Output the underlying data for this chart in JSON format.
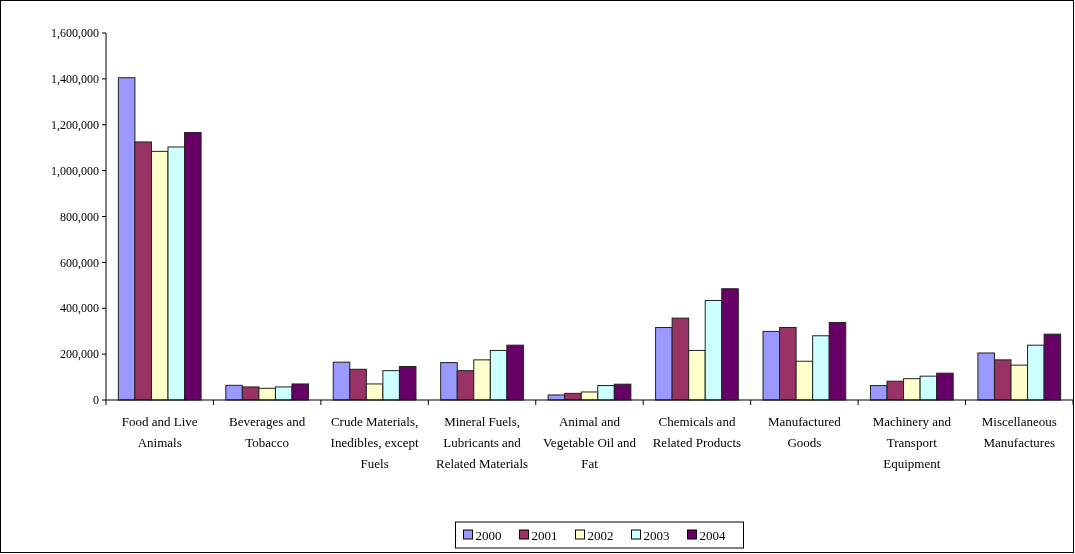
{
  "chart_data": {
    "type": "bar",
    "categories": [
      "Food and Live Animals",
      "Beverages and Tobacco",
      "Crude Materials, Inedibles, except Fuels",
      "Mineral Fuels, Lubricants and Related Materials",
      "Animal and Vegetable Oil and Fat",
      "Chemicals and Related Products",
      "Manufactured Goods",
      "Machinery and Transport Equipment",
      "Miscellaneous Manufactures"
    ],
    "series": [
      {
        "name": "2000",
        "color": "#9999ff",
        "values": [
          1405000,
          64000,
          165000,
          163000,
          22000,
          316000,
          299000,
          63000,
          205000
        ]
      },
      {
        "name": "2001",
        "color": "#993366",
        "values": [
          1125000,
          57000,
          134000,
          128000,
          29000,
          357000,
          316000,
          82000,
          175000
        ]
      },
      {
        "name": "2002",
        "color": "#ffffcc",
        "values": [
          1084000,
          51000,
          70000,
          175000,
          35000,
          216000,
          169000,
          93000,
          152000
        ]
      },
      {
        "name": "2003",
        "color": "#ccffff",
        "values": [
          1103000,
          57000,
          128000,
          216000,
          63000,
          434000,
          280000,
          104000,
          239000
        ]
      },
      {
        "name": "2004",
        "color": "#660066",
        "values": [
          1166000,
          70000,
          146000,
          239000,
          69000,
          485000,
          338000,
          117000,
          287000
        ]
      }
    ],
    "ylim": [
      0,
      1600000
    ],
    "yticks": [
      {
        "value": 0,
        "label": "0"
      },
      {
        "value": 200000,
        "label": "200,000"
      },
      {
        "value": 400000,
        "label": "400,000"
      },
      {
        "value": 600000,
        "label": "600,000"
      },
      {
        "value": 800000,
        "label": "800,000"
      },
      {
        "value": 1000000,
        "label": "1,000,000"
      },
      {
        "value": 1200000,
        "label": "1,200,000"
      },
      {
        "value": 1400000,
        "label": "1,400,000"
      },
      {
        "value": 1600000,
        "label": "1,600,000"
      }
    ],
    "grid": false,
    "legend": "bottom"
  }
}
